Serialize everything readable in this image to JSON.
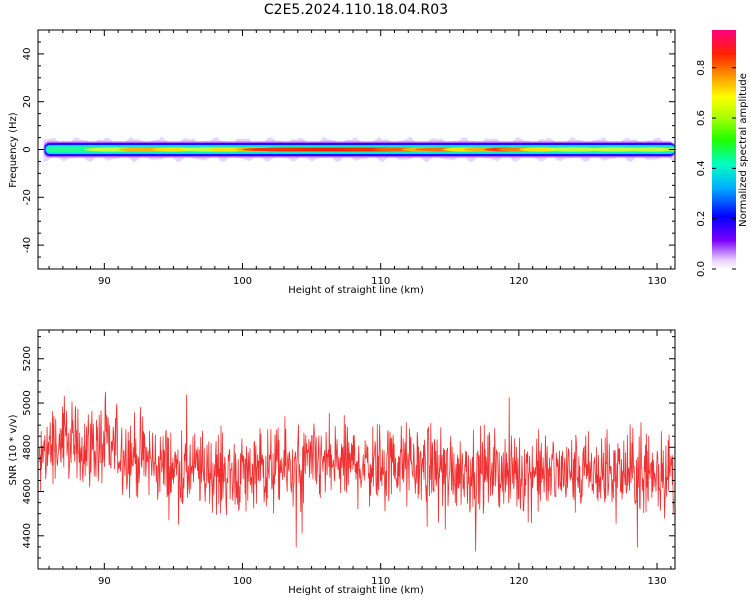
{
  "title": "C2E5.2024.110.18.04.R03",
  "chart_data": [
    {
      "type": "heatmap",
      "xlabel": "Height of straight line (km)",
      "ylabel": "Frequency (Hz)",
      "xlim": [
        85.2,
        131.3
      ],
      "ylim": [
        -50,
        50
      ],
      "xticks": [
        90,
        100,
        110,
        120,
        130
      ],
      "yticks": [
        -40,
        -20,
        0,
        20,
        40
      ],
      "yticklabels": [
        "-40",
        "-20",
        "0",
        "20",
        "40"
      ],
      "band_center_hz": 0,
      "colorbar": {
        "label": "Normalized spectral amplitude",
        "range": [
          0.0,
          0.95
        ],
        "ticks": [
          "0.0",
          "0.2",
          "0.4",
          "0.6",
          "0.8"
        ],
        "tick_values": [
          0.0,
          0.2,
          0.4,
          0.6,
          0.8
        ]
      }
    },
    {
      "type": "line",
      "xlabel": "Height of straight line (km)",
      "ylabel": "SNR (10 * v/v)",
      "xlim": [
        85.2,
        131.3
      ],
      "ylim": [
        4250,
        5330
      ],
      "xticks": [
        90,
        100,
        110,
        120,
        130
      ],
      "yticks": [
        4400,
        4600,
        4800,
        5000,
        5200
      ],
      "yticklabels": [
        "4400",
        "4600",
        "4800",
        "5000",
        "5200"
      ],
      "color": "#f03030",
      "series_mean": [
        {
          "x": 85.5,
          "y": 4800
        },
        {
          "x": 88,
          "y": 4810
        },
        {
          "x": 91,
          "y": 4790
        },
        {
          "x": 95,
          "y": 4700
        },
        {
          "x": 100,
          "y": 4680
        },
        {
          "x": 105,
          "y": 4720
        },
        {
          "x": 110,
          "y": 4730
        },
        {
          "x": 115,
          "y": 4700
        },
        {
          "x": 120,
          "y": 4690
        },
        {
          "x": 125,
          "y": 4680
        },
        {
          "x": 131,
          "y": 4690
        }
      ]
    }
  ]
}
